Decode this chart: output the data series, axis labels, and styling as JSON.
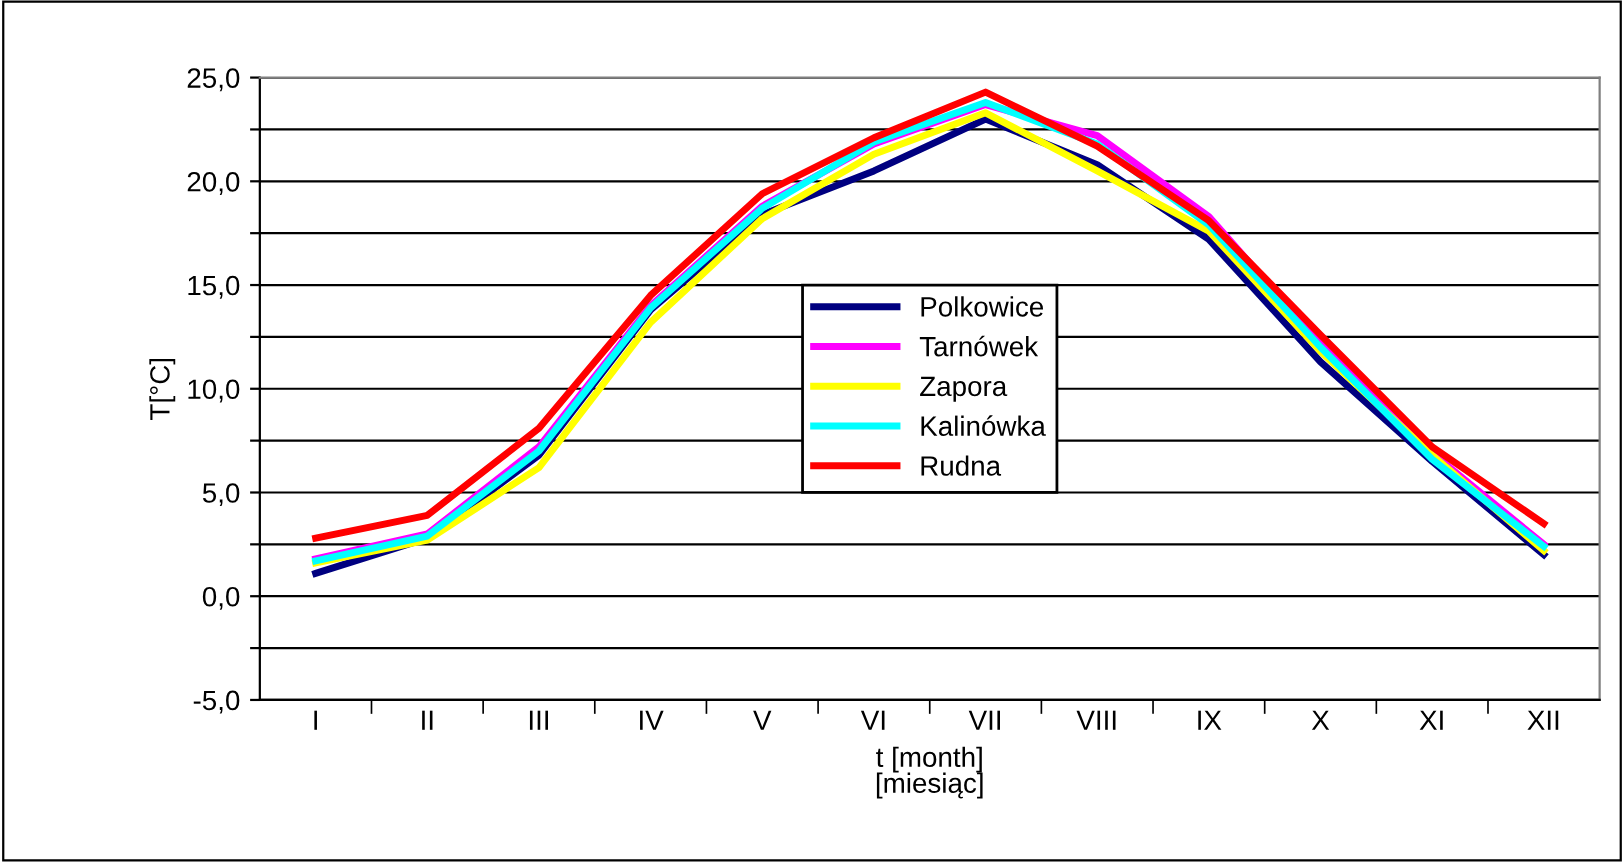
{
  "chart_data": {
    "type": "line",
    "xlabel": "t [month]\n[miesiąc]",
    "ylabel": "T[°C]",
    "categories": [
      "I",
      "II",
      "III",
      "IV",
      "V",
      "VI",
      "VII",
      "VIII",
      "IX",
      "X",
      "XI",
      "XII"
    ],
    "series": [
      {
        "name": "Polkowice",
        "color": "#000080",
        "values": [
          1.1,
          2.8,
          6.8,
          13.8,
          18.4,
          20.5,
          23.0,
          20.8,
          17.2,
          11.3,
          6.5,
          2.0
        ]
      },
      {
        "name": "Tarnówek",
        "color": "#ff00ff",
        "values": [
          1.8,
          3.0,
          7.2,
          14.0,
          18.8,
          21.8,
          23.7,
          22.2,
          18.3,
          12.2,
          6.9,
          2.5
        ]
      },
      {
        "name": "Zapora",
        "color": "#ffff00",
        "values": [
          1.6,
          2.7,
          6.2,
          13.2,
          18.2,
          21.3,
          23.3,
          20.5,
          17.6,
          11.8,
          6.8,
          2.2
        ]
      },
      {
        "name": "Kalinówka",
        "color": "#00ffff",
        "values": [
          1.7,
          2.9,
          7.0,
          13.9,
          18.7,
          21.9,
          23.8,
          21.8,
          17.9,
          12.0,
          6.6,
          2.4
        ]
      },
      {
        "name": "Rudna",
        "color": "#ff0000",
        "values": [
          2.8,
          3.9,
          8.1,
          14.5,
          19.4,
          22.1,
          24.3,
          21.7,
          18.1,
          12.6,
          7.2,
          3.5
        ]
      }
    ],
    "ylim": [
      -5,
      25
    ],
    "yticks": [
      {
        "value": -5,
        "label": "-5,0"
      },
      {
        "value": -2.5,
        "label": null
      },
      {
        "value": 0,
        "label": "0,0"
      },
      {
        "value": 2.5,
        "label": null
      },
      {
        "value": 5,
        "label": "5,0"
      },
      {
        "value": 7.5,
        "label": null
      },
      {
        "value": 10,
        "label": "10,0"
      },
      {
        "value": 12.5,
        "label": null
      },
      {
        "value": 15,
        "label": "15,0"
      },
      {
        "value": 17.5,
        "label": null
      },
      {
        "value": 20,
        "label": "20,0"
      },
      {
        "value": 22.5,
        "label": null
      },
      {
        "value": 25,
        "label": "25,0"
      }
    ],
    "grid": "y",
    "legend": "center",
    "marker": "none",
    "line_style": "solid"
  }
}
